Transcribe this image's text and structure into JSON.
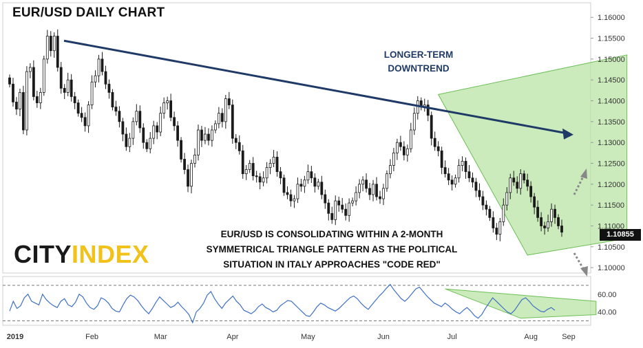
{
  "header": {
    "title": "EUR/USD DAILY CHART",
    "trend_line1": "LONGER-TERM",
    "trend_line2": "DOWNTREND",
    "caption_line1": "EUR/USD IS CONSOLIDATING WITHIN A 2-MONTH",
    "caption_line2": "SYMMETRICAL TRIANGLE PATTERN AS THE POLITICAL",
    "caption_line3": "SITUATION IN ITALY APPROACHES \"CODE RED\""
  },
  "logo": {
    "part1": "CITY",
    "part2": "INDEX"
  },
  "colors": {
    "candle": "#1a1a1a",
    "rsi_line": "#3d6fc4",
    "triangle_fill": "#b6e3a0",
    "triangle_edge": "#6cbf55",
    "trend_arrow": "#1f3a66",
    "dotted_arrow": "#888888",
    "logo_accent": "#f0c21b"
  },
  "price_tag": "1.10855",
  "chart_data": [
    {
      "type": "candlestick",
      "title": "EUR/USD DAILY CHART",
      "x_month_labels": [
        "2019",
        "Feb",
        "Mar",
        "Apr",
        "May",
        "Jun",
        "Jul",
        "Aug",
        "Sep"
      ],
      "y_tick_labels": [
        "1.16000",
        "1.15500",
        "1.15000",
        "1.14500",
        "1.14000",
        "1.13500",
        "1.13000",
        "1.12500",
        "1.12000",
        "1.11500",
        "1.11000",
        "1.10500",
        "1.10000"
      ],
      "y_ticks": [
        1.16,
        1.155,
        1.15,
        1.145,
        1.14,
        1.135,
        1.13,
        1.125,
        1.12,
        1.115,
        1.11,
        1.105,
        1.1
      ],
      "ylim": [
        1.0987,
        1.1635
      ],
      "last_price": 1.10855,
      "daily_close_estimate": [
        1.144,
        1.1397,
        1.138,
        1.142,
        1.133,
        1.147,
        1.148,
        1.141,
        1.1395,
        1.142,
        1.15,
        1.1555,
        1.152,
        1.1555,
        1.148,
        1.143,
        1.142,
        1.145,
        1.141,
        1.1395,
        1.137,
        1.136,
        1.134,
        1.139,
        1.1445,
        1.146,
        1.15,
        1.147,
        1.144,
        1.142,
        1.1385,
        1.1375,
        1.135,
        1.132,
        1.129,
        1.131,
        1.135,
        1.1375,
        1.1335,
        1.13,
        1.1285,
        1.131,
        1.134,
        1.1325,
        1.137,
        1.1395,
        1.14,
        1.136,
        1.134,
        1.1305,
        1.126,
        1.1235,
        1.1195,
        1.125,
        1.127,
        1.133,
        1.1305,
        1.132,
        1.1305,
        1.133,
        1.1345,
        1.137,
        1.135,
        1.1405,
        1.139,
        1.131,
        1.13,
        1.128,
        1.1225,
        1.1235,
        1.125,
        1.122,
        1.1218,
        1.1205,
        1.1215,
        1.124,
        1.125,
        1.1265,
        1.123,
        1.1215,
        1.118,
        1.1175,
        1.116,
        1.1165,
        1.12,
        1.1195,
        1.121,
        1.123,
        1.1215,
        1.1195,
        1.1205,
        1.1175,
        1.1155,
        1.113,
        1.1115,
        1.116,
        1.115,
        1.114,
        1.1125,
        1.1155,
        1.116,
        1.118,
        1.12,
        1.121,
        1.119,
        1.1175,
        1.12,
        1.117,
        1.1165,
        1.119,
        1.1225,
        1.1245,
        1.1275,
        1.13,
        1.129,
        1.127,
        1.1285,
        1.133,
        1.137,
        1.14,
        1.1385,
        1.139,
        1.1365,
        1.131,
        1.129,
        1.128,
        1.124,
        1.1225,
        1.121,
        1.12,
        1.1215,
        1.1245,
        1.1255,
        1.123,
        1.1215,
        1.1205,
        1.1185,
        1.117,
        1.115,
        1.114,
        1.112,
        1.1095,
        1.108,
        1.111,
        1.115,
        1.118,
        1.1215,
        1.1205,
        1.119,
        1.1225,
        1.121,
        1.1195,
        1.117,
        1.1145,
        1.112,
        1.11,
        1.1095,
        1.111,
        1.114,
        1.112,
        1.11,
        1.1085
      ],
      "annotations": [
        {
          "text": "LONGER-TERM DOWNTREND",
          "from": [
            "2019-01-21",
            1.16
          ],
          "to": [
            "2019-09-25",
            1.1365
          ]
        },
        {
          "text": "symmetrical triangle",
          "upper_from": [
            "2019-06-25",
            1.1415
          ],
          "upper_to": [
            "2019-09-10",
            1.151
          ],
          "lower_from": [
            "2019-08-01",
            1.103
          ],
          "lower_to": [
            "2019-09-10",
            1.107
          ]
        }
      ]
    },
    {
      "type": "line",
      "series": [
        {
          "name": "",
          "values": [
            41,
            52,
            44,
            47,
            56,
            60,
            52,
            50,
            48,
            60,
            54,
            50,
            47,
            45,
            52,
            55,
            48,
            46,
            51,
            60,
            57,
            50,
            45,
            43,
            47,
            56,
            54,
            50,
            44,
            41,
            40,
            48,
            55,
            59,
            57,
            53,
            47,
            42,
            38,
            44,
            51,
            57,
            53,
            49,
            45,
            47,
            51,
            46,
            42,
            37,
            28,
            40,
            44,
            50,
            59,
            63,
            55,
            49,
            44,
            50,
            54,
            58,
            52,
            48,
            42,
            40,
            38,
            41,
            46,
            49,
            45,
            43,
            40,
            42,
            47,
            50,
            53,
            52,
            48,
            44,
            40,
            36,
            35,
            40,
            46,
            50,
            48,
            45,
            43,
            41,
            44,
            48,
            52,
            56,
            58,
            55,
            50,
            46,
            43,
            48,
            53,
            58,
            62,
            67,
            71,
            65,
            60,
            55,
            52,
            56,
            61,
            66,
            68,
            63,
            58,
            54,
            50,
            48,
            46,
            50,
            47,
            43,
            40,
            38,
            42,
            45,
            41,
            36,
            33,
            37,
            44,
            50,
            56,
            52,
            48,
            44,
            40,
            38,
            42,
            48,
            54,
            56,
            52,
            47,
            44,
            41,
            40,
            43,
            45,
            42
          ]
        }
      ],
      "y_tick_labels": [
        "60.00",
        "40.00"
      ],
      "ylim": [
        25,
        80
      ],
      "reference_levels": [
        70,
        30
      ]
    }
  ]
}
